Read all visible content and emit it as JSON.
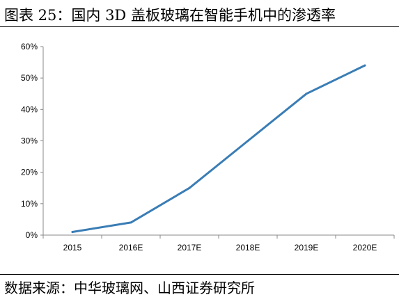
{
  "header": {
    "title": "图表  25：国内 3D 盖板玻璃在智能手机中的渗透率"
  },
  "footer": {
    "source": "数据来源：中华玻璃网、山西证券研究所"
  },
  "chart_data": {
    "type": "line",
    "categories": [
      "2015",
      "2016E",
      "2017E",
      "2018E",
      "2019E",
      "2020E"
    ],
    "values": [
      0.01,
      0.04,
      0.15,
      0.3,
      0.45,
      0.54
    ],
    "ylim": [
      0,
      0.6
    ],
    "yticks": [
      0,
      0.1,
      0.2,
      0.3,
      0.4,
      0.5,
      0.6
    ],
    "ytick_labels": [
      "0%",
      "10%",
      "20%",
      "30%",
      "40%",
      "50%",
      "60%"
    ],
    "line_color": "#3A7DB5",
    "grid": false,
    "legend": "none"
  }
}
